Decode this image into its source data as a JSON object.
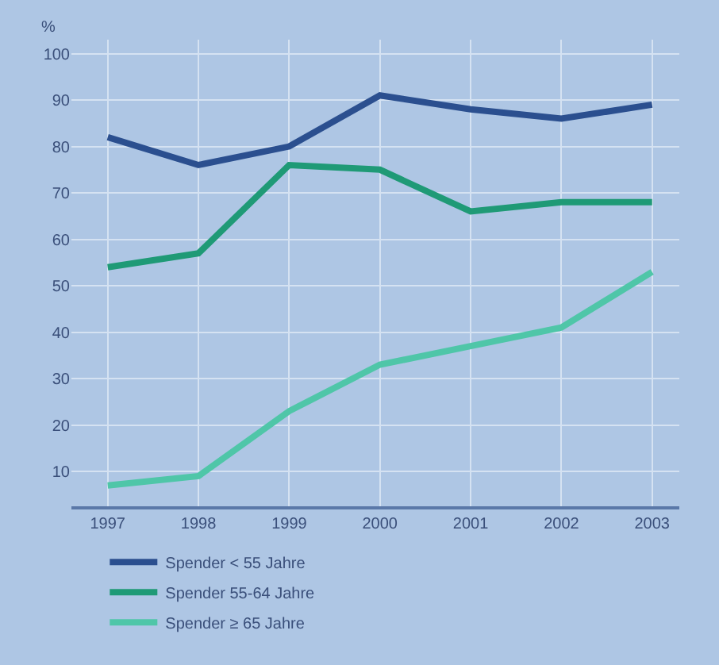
{
  "chart_data": {
    "type": "line",
    "ylabel": "%",
    "categories": [
      "1997",
      "1998",
      "1999",
      "2000",
      "2001",
      "2002",
      "2003"
    ],
    "series": [
      {
        "name": "Spender < 55 Jahre",
        "color": "#2b4f8f",
        "values": [
          82,
          76,
          80,
          91,
          88,
          86,
          89
        ]
      },
      {
        "name": "Spender 55-64 Jahre",
        "color": "#1f9a76",
        "values": [
          54,
          57,
          76,
          75,
          66,
          68,
          68
        ]
      },
      {
        "name": "Spender ≥ 65 Jahre",
        "color": "#4fc6a8",
        "values": [
          7,
          9,
          23,
          33,
          37,
          41,
          53
        ]
      }
    ],
    "ylim": [
      2.5,
      103
    ],
    "yticks": [
      10,
      20,
      30,
      40,
      50,
      60,
      70,
      80,
      90,
      100
    ],
    "grid": true,
    "legend": "bottom left",
    "marker": "none",
    "line_style": "solid"
  }
}
